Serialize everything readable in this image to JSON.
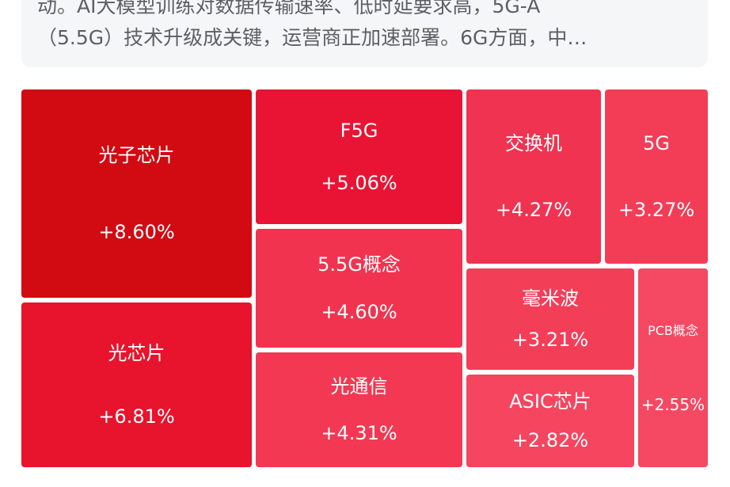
{
  "summary": {
    "lines": [
      "动。AI大模型训练对数据传输速率、低时延要求高，5G-A",
      "（5.5G）技术升级成关键，运营商正加速部署。6G方面，中…"
    ]
  },
  "tiles": [
    {
      "name": "光子芯片",
      "change": "+8.60%",
      "color": "#d20a12"
    },
    {
      "name": "光芯片",
      "change": "+6.81%",
      "color": "#e8132c"
    },
    {
      "name": "F5G",
      "change": "+5.06%",
      "color": "#e91434"
    },
    {
      "name": "5.5G概念",
      "change": "+4.60%",
      "color": "#f2334f"
    },
    {
      "name": "光通信",
      "change": "+4.31%",
      "color": "#f23852"
    },
    {
      "name": "交换机",
      "change": "+4.27%",
      "color": "#f03351"
    },
    {
      "name": "5G",
      "change": "+3.27%",
      "color": "#f33d57"
    },
    {
      "name": "毫米波",
      "change": "+3.21%",
      "color": "#f33e58"
    },
    {
      "name": "ASIC芯片",
      "change": "+2.82%",
      "color": "#f5455f"
    },
    {
      "name": "PCB概念",
      "change": "+2.55%",
      "color": "#f54862"
    }
  ]
}
